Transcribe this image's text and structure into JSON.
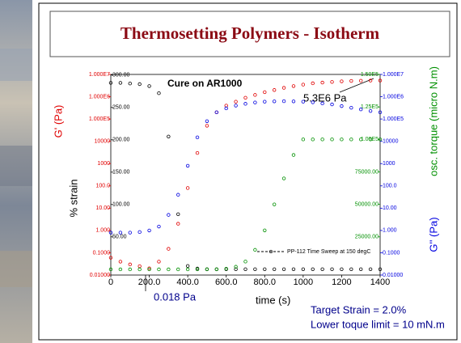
{
  "chart_data": {
    "type": "scatter",
    "title": "Thermosetting Polymers - Isotherm",
    "annotations": {
      "cure": "Cure on AR1000",
      "final": "5.3E6 Pa",
      "minimum": "0.018 Pa",
      "target": "Target Strain = 2.0%",
      "limit": "Lower toque limit = 10 mN.m"
    },
    "legend": "PP-112 Time Sweep at 150 degC",
    "x_label": "time (s)",
    "y_label": "G' (Pa)",
    "strain_label": "% strain",
    "y2_label": "G'' (Pa)",
    "torque_label": "osc. torque (micro N.m)",
    "xlim": [
      0,
      1400
    ],
    "xticks": [
      0,
      {
        "value": 200,
        "label": "200.0"
      },
      {
        "value": 400,
        "label": "400.0"
      },
      {
        "value": 600,
        "label": "600.0"
      },
      {
        "value": 800,
        "label": "800.0"
      },
      1000,
      1200,
      1400
    ],
    "log_scale": true,
    "ylim": [
      0.01,
      10000000
    ],
    "yticks": [
      {
        "value": 0.01,
        "label": "0.01000"
      },
      {
        "value": 0.1,
        "label": "0.1000"
      },
      {
        "value": 1,
        "label": "1.000"
      },
      {
        "value": 10,
        "label": "10.00"
      },
      {
        "value": 100,
        "label": "100.0"
      },
      1000,
      10000,
      {
        "value": 100000,
        "label": "1.000E5"
      },
      {
        "value": 1000000,
        "label": "1.000E6"
      },
      {
        "value": 10000000,
        "label": "1.000E7"
      }
    ],
    "y2lim": [
      0.01,
      10000000
    ],
    "y2ticks": [
      {
        "value": 0.01,
        "label": "0.01000"
      },
      {
        "value": 0.1,
        "label": "0.1000"
      },
      {
        "value": 1,
        "label": "1.000"
      },
      {
        "value": 10,
        "label": "10.00"
      },
      {
        "value": 100,
        "label": "100.0"
      },
      1000,
      10000,
      {
        "value": 100000,
        "label": "1.000E5"
      },
      {
        "value": 1000000,
        "label": "1.000E6"
      },
      {
        "value": 10000000,
        "label": "1.000E7"
      }
    ],
    "strain_lim": [
      -9,
      301
    ],
    "strain_ticks": [
      {
        "value": 50,
        "label": "50.00"
      },
      {
        "value": 100,
        "label": "100.00"
      },
      {
        "value": 150,
        "label": "150.00"
      },
      {
        "value": 200,
        "label": "200.00"
      },
      {
        "value": 250,
        "label": "250.00"
      },
      {
        "value": 300,
        "label": "300.00"
      }
    ],
    "torque_lim": [
      -4375,
      150000
    ],
    "torque_ticks": [
      {
        "value": 25000,
        "label": "25000.00"
      },
      {
        "value": 50000,
        "label": "50000.00"
      },
      {
        "value": 75000,
        "label": "75000.00"
      },
      {
        "value": 100000,
        "label": "1.00E5"
      },
      {
        "value": 125000,
        "label": "1.25E5"
      },
      {
        "value": 150000,
        "label": "1.50E5"
      }
    ],
    "x": [
      0,
      50,
      100,
      150,
      200,
      250,
      300,
      350,
      400,
      450,
      500,
      550,
      600,
      650,
      700,
      750,
      800,
      850,
      900,
      950,
      1000,
      1050,
      1100,
      1150,
      1200,
      1250,
      1300,
      1350,
      1400
    ],
    "series": [
      {
        "axis": "strain",
        "color": "#000000",
        "values": [
          288,
          288,
          287,
          286,
          283,
          272,
          205,
          85,
          5,
          1,
          0,
          0,
          0,
          0,
          0,
          0,
          0,
          0,
          0,
          0,
          0,
          0,
          0,
          0,
          0,
          0,
          0,
          0,
          0
        ]
      },
      {
        "axis": "y",
        "color": "#e00000",
        "values": [
          0.06,
          0.04,
          0.03,
          0.025,
          0.02,
          0.04,
          0.15,
          2,
          80,
          3000,
          50000,
          200000,
          400000,
          600000,
          900000,
          1200000,
          1600000,
          2000000,
          2500000,
          3000000,
          3500000,
          4000000,
          4300000,
          4600000,
          4900000,
          5100000,
          5200000,
          5300000,
          5300000
        ]
      },
      {
        "axis": "y2",
        "color": "#0000e0",
        "values": [
          0.8,
          0.8,
          0.8,
          0.85,
          1,
          1.5,
          5,
          40,
          800,
          15000,
          80000,
          200000,
          300000,
          400000,
          480000,
          550000,
          600000,
          620000,
          630000,
          620000,
          600000,
          560000,
          500000,
          450000,
          380000,
          320000,
          270000,
          230000,
          200000
        ]
      },
      {
        "axis": "torque",
        "color": "#009000",
        "values": [
          0,
          0,
          0,
          0,
          0,
          0,
          0,
          0,
          0,
          0,
          0,
          0,
          500,
          2000,
          6000,
          15000,
          30000,
          50000,
          70000,
          88000,
          100000,
          100000,
          100000,
          100000,
          100000,
          100000,
          100000,
          100000,
          100000
        ]
      }
    ]
  }
}
